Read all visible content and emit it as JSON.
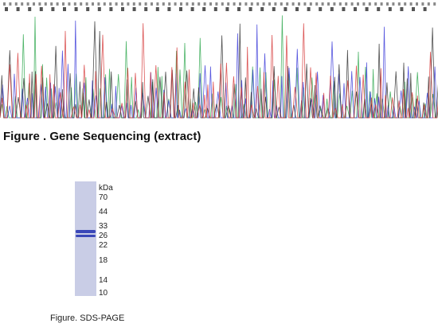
{
  "sequencing": {
    "caption": "Figure . Gene Sequencing (extract)",
    "trace_colors": {
      "A": "#2fa84f",
      "C": "#3b3bd9",
      "G": "#333333",
      "T": "#d63a3a"
    }
  },
  "sds_page": {
    "caption": "Figure. SDS-PAGE",
    "unit": "kDa",
    "markers": [
      "70",
      "44",
      "33",
      "26",
      "22",
      "18",
      "14",
      "10"
    ],
    "gel_color": "#c9cde6",
    "band_color": "#3a47b8"
  }
}
